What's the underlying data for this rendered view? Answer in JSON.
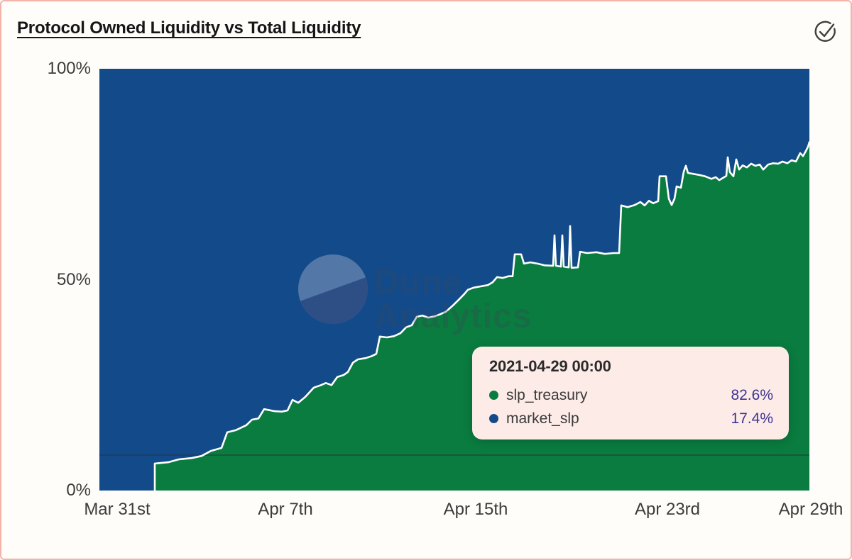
{
  "header": {
    "title": "Protocol Owned Liquidity vs Total Liquidity"
  },
  "icons": {
    "check_circle": "check-circle"
  },
  "watermark": {
    "line1": "Dune",
    "line2": "Analytics"
  },
  "colors": {
    "treasury_green": "#0a7c3f",
    "market_blue": "#134b8a",
    "boundary_stroke": "#ffffff",
    "tooltip_bg": "#fcebe7",
    "tooltip_value": "#3d3493",
    "card_border": "#f2b3a9",
    "axis_text": "#3c3c3c",
    "ref_line": "#26323f"
  },
  "tooltip": {
    "date": "2021-04-29 00:00",
    "rows": [
      {
        "label": "slp_treasury",
        "value": "82.6%",
        "color": "#0a7c3f"
      },
      {
        "label": "market_slp",
        "value": "17.4%",
        "color": "#134b8a"
      }
    ]
  },
  "chart_data": {
    "type": "area",
    "stacked_percent": true,
    "title": "Protocol Owned Liquidity vs Total Liquidity",
    "xlabel": "",
    "ylabel": "",
    "ylim": [
      0,
      100
    ],
    "grid": false,
    "legend_position": "tooltip-only",
    "x_ticks": [
      {
        "f": 0.025,
        "label": "Mar 31st"
      },
      {
        "f": 0.262,
        "label": "Apr 7th"
      },
      {
        "f": 0.53,
        "label": "Apr 15th"
      },
      {
        "f": 0.8,
        "label": "Apr 23rd"
      },
      {
        "f": 1.002,
        "label": "Apr 29th"
      }
    ],
    "y_ticks": [
      {
        "pct": 100,
        "label": "100%"
      },
      {
        "pct": 50,
        "label": "50%"
      },
      {
        "pct": 0,
        "label": "0%"
      }
    ],
    "ref_line_pct": 8.4,
    "series": [
      {
        "name": "slp_treasury",
        "color": "#0a7c3f",
        "final_value_pct": 82.6,
        "trace": [
          [
            0.0,
            0.0
          ],
          [
            0.078,
            0.0
          ],
          [
            0.078,
            6.4
          ],
          [
            0.097,
            6.7
          ],
          [
            0.112,
            7.4
          ],
          [
            0.13,
            7.7
          ],
          [
            0.144,
            8.2
          ],
          [
            0.157,
            9.4
          ],
          [
            0.172,
            10.1
          ],
          [
            0.18,
            13.8
          ],
          [
            0.192,
            14.3
          ],
          [
            0.207,
            15.5
          ],
          [
            0.215,
            16.8
          ],
          [
            0.224,
            17.1
          ],
          [
            0.232,
            19.3
          ],
          [
            0.247,
            18.8
          ],
          [
            0.257,
            18.7
          ],
          [
            0.265,
            19.0
          ],
          [
            0.272,
            21.5
          ],
          [
            0.28,
            20.8
          ],
          [
            0.29,
            22.2
          ],
          [
            0.302,
            24.4
          ],
          [
            0.312,
            25.0
          ],
          [
            0.319,
            25.5
          ],
          [
            0.327,
            25.0
          ],
          [
            0.335,
            26.9
          ],
          [
            0.344,
            27.4
          ],
          [
            0.35,
            28.1
          ],
          [
            0.357,
            30.3
          ],
          [
            0.364,
            31.1
          ],
          [
            0.375,
            31.4
          ],
          [
            0.384,
            31.9
          ],
          [
            0.39,
            32.4
          ],
          [
            0.395,
            36.5
          ],
          [
            0.405,
            36.3
          ],
          [
            0.415,
            36.6
          ],
          [
            0.424,
            37.3
          ],
          [
            0.432,
            38.7
          ],
          [
            0.44,
            39.2
          ],
          [
            0.447,
            41.2
          ],
          [
            0.455,
            41.5
          ],
          [
            0.463,
            41.0
          ],
          [
            0.472,
            41.3
          ],
          [
            0.48,
            41.8
          ],
          [
            0.488,
            42.4
          ],
          [
            0.498,
            43.9
          ],
          [
            0.507,
            45.4
          ],
          [
            0.514,
            46.6
          ],
          [
            0.519,
            47.6
          ],
          [
            0.527,
            48.1
          ],
          [
            0.537,
            48.4
          ],
          [
            0.547,
            48.7
          ],
          [
            0.554,
            49.4
          ],
          [
            0.56,
            50.6
          ],
          [
            0.568,
            50.4
          ],
          [
            0.576,
            50.8
          ],
          [
            0.582,
            50.8
          ],
          [
            0.585,
            56.0
          ],
          [
            0.594,
            56.0
          ],
          [
            0.598,
            53.8
          ],
          [
            0.607,
            54.1
          ],
          [
            0.617,
            53.8
          ],
          [
            0.627,
            53.4
          ],
          [
            0.639,
            53.3
          ],
          [
            0.641,
            60.5
          ],
          [
            0.643,
            53.3
          ],
          [
            0.65,
            53.1
          ],
          [
            0.652,
            60.5
          ],
          [
            0.654,
            53.1
          ],
          [
            0.661,
            52.9
          ],
          [
            0.663,
            62.7
          ],
          [
            0.665,
            52.8
          ],
          [
            0.674,
            52.9
          ],
          [
            0.677,
            56.6
          ],
          [
            0.687,
            56.3
          ],
          [
            0.7,
            56.5
          ],
          [
            0.712,
            56.1
          ],
          [
            0.724,
            56.3
          ],
          [
            0.732,
            56.3
          ],
          [
            0.735,
            67.6
          ],
          [
            0.744,
            67.2
          ],
          [
            0.754,
            67.7
          ],
          [
            0.762,
            68.4
          ],
          [
            0.768,
            67.6
          ],
          [
            0.774,
            68.7
          ],
          [
            0.78,
            68.1
          ],
          [
            0.784,
            68.4
          ],
          [
            0.787,
            68.6
          ],
          [
            0.789,
            74.5
          ],
          [
            0.798,
            74.5
          ],
          [
            0.802,
            69.2
          ],
          [
            0.806,
            67.7
          ],
          [
            0.81,
            69.2
          ],
          [
            0.813,
            72.1
          ],
          [
            0.819,
            71.8
          ],
          [
            0.823,
            75.6
          ],
          [
            0.826,
            77.0
          ],
          [
            0.829,
            75.3
          ],
          [
            0.836,
            75.1
          ],
          [
            0.845,
            74.8
          ],
          [
            0.853,
            74.5
          ],
          [
            0.862,
            73.9
          ],
          [
            0.868,
            74.3
          ],
          [
            0.873,
            73.6
          ],
          [
            0.878,
            74.1
          ],
          [
            0.883,
            74.6
          ],
          [
            0.885,
            79.0
          ],
          [
            0.888,
            75.5
          ],
          [
            0.893,
            74.5
          ],
          [
            0.897,
            78.5
          ],
          [
            0.901,
            76.1
          ],
          [
            0.906,
            77.1
          ],
          [
            0.912,
            76.6
          ],
          [
            0.918,
            77.5
          ],
          [
            0.924,
            77.0
          ],
          [
            0.93,
            77.3
          ],
          [
            0.935,
            76.1
          ],
          [
            0.942,
            77.3
          ],
          [
            0.949,
            77.6
          ],
          [
            0.956,
            77.5
          ],
          [
            0.962,
            78.0
          ],
          [
            0.969,
            77.6
          ],
          [
            0.975,
            78.3
          ],
          [
            0.981,
            78.0
          ],
          [
            0.987,
            80.0
          ],
          [
            0.991,
            79.3
          ],
          [
            0.995,
            80.5
          ],
          [
            0.998,
            81.5
          ],
          [
            1.0,
            82.6
          ]
        ]
      },
      {
        "name": "market_slp",
        "color": "#134b8a",
        "final_value_pct": 17.4,
        "derived": "100 minus slp_treasury (fills remainder of 100% stack)"
      }
    ]
  }
}
